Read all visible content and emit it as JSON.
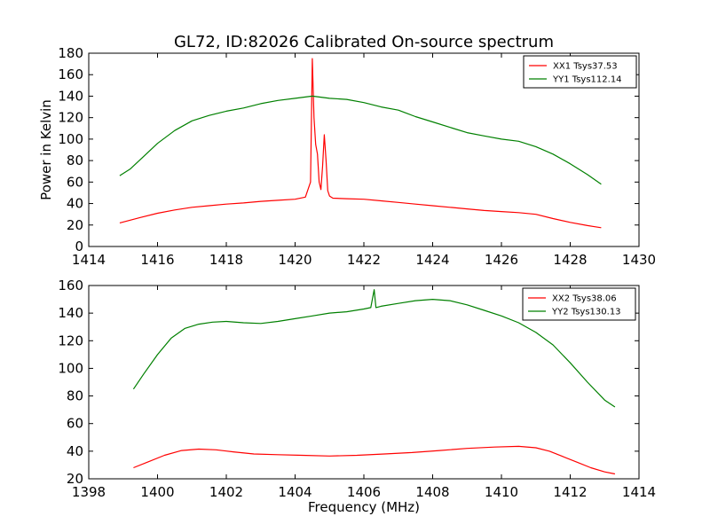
{
  "figure": {
    "title": "GL72, ID:82026 Calibrated On-source spectrum"
  },
  "chart_data": [
    {
      "type": "line",
      "title": "GL72, ID:82026 Calibrated On-source spectrum",
      "xlabel": "",
      "ylabel": "Power in Kelvin",
      "xlim": [
        1414,
        1430
      ],
      "ylim": [
        0,
        180
      ],
      "xticks": [
        "1414",
        "1416",
        "1418",
        "1420",
        "1422",
        "1424",
        "1426",
        "1428",
        "1430"
      ],
      "yticks": [
        "0",
        "20",
        "40",
        "60",
        "80",
        "100",
        "120",
        "140",
        "160",
        "180"
      ],
      "grid": false,
      "legend": "top-right",
      "series": [
        {
          "name": "XX1 Tsys37.53",
          "color": "#ff0000",
          "x": [
            1414.9,
            1415.5,
            1416.0,
            1416.5,
            1417.0,
            1417.5,
            1418.0,
            1418.5,
            1419.0,
            1419.5,
            1420.0,
            1420.3,
            1420.45,
            1420.5,
            1420.55,
            1420.6,
            1420.65,
            1420.7,
            1420.75,
            1420.8,
            1420.85,
            1420.9,
            1420.95,
            1421.0,
            1421.1,
            1421.5,
            1422.0,
            1422.5,
            1423.0,
            1423.5,
            1424.0,
            1424.5,
            1425.0,
            1425.5,
            1426.0,
            1426.5,
            1427.0,
            1427.5,
            1428.0,
            1428.5,
            1428.9
          ],
          "y": [
            22,
            27,
            31,
            34,
            36.5,
            38,
            39.5,
            40.5,
            42,
            43,
            44,
            46,
            60,
            175,
            120,
            95,
            86,
            60,
            53,
            75,
            104,
            80,
            52,
            47,
            45,
            44.5,
            44,
            42.5,
            41,
            39.5,
            38,
            36.5,
            35,
            33.5,
            32.5,
            31.5,
            30,
            26,
            22.5,
            19.5,
            17.5
          ]
        },
        {
          "name": "YY1 Tsys112.14",
          "color": "#008000",
          "x": [
            1414.9,
            1415.2,
            1415.6,
            1416.0,
            1416.5,
            1417.0,
            1417.5,
            1418.0,
            1418.5,
            1419.0,
            1419.5,
            1420.0,
            1420.5,
            1421.0,
            1421.5,
            1422.0,
            1422.5,
            1423.0,
            1423.5,
            1424.0,
            1424.5,
            1425.0,
            1425.5,
            1426.0,
            1426.5,
            1427.0,
            1427.5,
            1428.0,
            1428.5,
            1428.9
          ],
          "y": [
            66,
            72,
            84,
            96,
            108,
            117,
            122,
            126,
            129,
            133,
            136,
            138,
            140,
            138,
            137,
            134,
            130,
            127,
            121,
            116,
            111,
            106,
            103,
            100,
            98,
            93,
            86,
            77,
            67,
            58
          ]
        }
      ]
    },
    {
      "type": "line",
      "title": "",
      "xlabel": "Frequency (MHz)",
      "ylabel": "",
      "xlim": [
        1398,
        1414
      ],
      "ylim": [
        20,
        160
      ],
      "xticks": [
        "1398",
        "1400",
        "1402",
        "1404",
        "1406",
        "1408",
        "1410",
        "1412",
        "1414"
      ],
      "yticks": [
        "20",
        "40",
        "60",
        "80",
        "100",
        "120",
        "140",
        "160"
      ],
      "grid": false,
      "legend": "top-right",
      "series": [
        {
          "name": "XX2 Tsys38.06",
          "color": "#ff0000",
          "x": [
            1399.3,
            1399.7,
            1400.2,
            1400.7,
            1401.2,
            1401.7,
            1402.2,
            1402.8,
            1403.5,
            1404.2,
            1405.0,
            1405.8,
            1406.6,
            1407.4,
            1408.2,
            1409.0,
            1409.8,
            1410.5,
            1411.0,
            1411.4,
            1411.8,
            1412.2,
            1412.6,
            1413.0,
            1413.3
          ],
          "y": [
            28,
            32,
            37,
            40.5,
            41.5,
            41,
            39.5,
            38,
            37.5,
            37,
            36.5,
            37,
            38,
            39,
            40.5,
            42,
            43,
            43.5,
            42.5,
            40,
            36,
            32,
            28,
            25,
            23.5
          ]
        },
        {
          "name": "YY2 Tsys130.13",
          "color": "#008000",
          "x": [
            1399.3,
            1399.6,
            1400.0,
            1400.4,
            1400.8,
            1401.2,
            1401.6,
            1402.0,
            1402.5,
            1403.0,
            1403.5,
            1404.0,
            1404.5,
            1405.0,
            1405.5,
            1406.0,
            1406.2,
            1406.3,
            1406.35,
            1406.5,
            1407.0,
            1407.5,
            1408.0,
            1408.5,
            1409.0,
            1409.5,
            1410.0,
            1410.5,
            1411.0,
            1411.5,
            1412.0,
            1412.5,
            1413.0,
            1413.3
          ],
          "y": [
            85,
            96,
            110,
            122,
            129,
            132,
            133.5,
            134,
            133,
            132.5,
            134,
            136,
            138,
            140,
            141,
            143,
            144,
            157,
            144,
            145,
            147,
            149,
            150,
            149,
            146,
            142,
            138,
            133,
            126,
            117,
            104,
            90,
            77,
            72
          ]
        }
      ]
    }
  ]
}
